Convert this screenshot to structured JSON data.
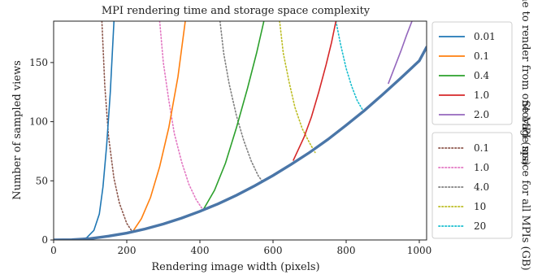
{
  "chart_data": {
    "type": "line",
    "title": "MPI rendering time and storage space complexity",
    "xlabel": "Rendering image width (pixels)",
    "ylabel": "Number of sampled views",
    "xlim": [
      0,
      1020
    ],
    "ylim": [
      0,
      185
    ],
    "x_ticks": [
      0,
      200,
      400,
      600,
      800,
      1000
    ],
    "y_ticks": [
      0,
      50,
      100,
      150
    ],
    "grid": false,
    "baseline": {
      "color": "#4a76a8",
      "points": [
        [
          0,
          0
        ],
        [
          50,
          0.2
        ],
        [
          100,
          1.2
        ],
        [
          150,
          3.2
        ],
        [
          200,
          5.8
        ],
        [
          250,
          9.3
        ],
        [
          300,
          13.5
        ],
        [
          350,
          18.5
        ],
        [
          400,
          24.2
        ],
        [
          450,
          30.6
        ],
        [
          500,
          37.8
        ],
        [
          550,
          45.8
        ],
        [
          600,
          54.5
        ],
        [
          650,
          64
        ],
        [
          700,
          74
        ],
        [
          750,
          85
        ],
        [
          800,
          97
        ],
        [
          850,
          109.5
        ],
        [
          900,
          123
        ],
        [
          950,
          137
        ],
        [
          1000,
          151.5
        ],
        [
          1020,
          163
        ]
      ]
    },
    "time_series": {
      "legend_title": "Time to render from one MPI (ms)",
      "legend_position": "right-top",
      "series": [
        {
          "name": "0.01",
          "color": "#1f77b4",
          "points": [
            [
              0,
              0
            ],
            [
              40,
              0.05
            ],
            [
              70,
              0.4
            ],
            [
              90,
              1.8
            ],
            [
              110,
              8
            ],
            [
              125,
              22
            ],
            [
              135,
              45
            ],
            [
              145,
              80
            ],
            [
              155,
              125
            ],
            [
              165,
              185
            ]
          ]
        },
        {
          "name": "0.1",
          "color": "#ff7f0e",
          "points": [
            [
              215,
              6.5
            ],
            [
              240,
              18
            ],
            [
              265,
              36
            ],
            [
              290,
              62
            ],
            [
              315,
              95
            ],
            [
              340,
              138
            ],
            [
              360,
              185
            ]
          ]
        },
        {
          "name": "0.4",
          "color": "#2ca02c",
          "points": [
            [
              410,
              26
            ],
            [
              440,
              42
            ],
            [
              470,
              65
            ],
            [
              500,
              95
            ],
            [
              530,
              128
            ],
            [
              555,
              158
            ],
            [
              575,
              185
            ]
          ]
        },
        {
          "name": "1.0",
          "color": "#d62728",
          "points": [
            [
              655,
              67
            ],
            [
              685,
              87
            ],
            [
              705,
              104
            ],
            [
              725,
              125
            ],
            [
              745,
              148
            ],
            [
              760,
              167
            ],
            [
              772,
              185
            ]
          ]
        },
        {
          "name": "2.0",
          "color": "#9467bd",
          "points": [
            [
              915,
              132
            ],
            [
              935,
              148
            ],
            [
              950,
              160
            ],
            [
              965,
              173
            ],
            [
              980,
              185
            ]
          ]
        }
      ]
    },
    "storage_series": {
      "legend_title": "Storage space for all MPIs (GB)",
      "legend_position": "right-bottom",
      "series": [
        {
          "name": "0.1",
          "color": "#8c564b",
          "points": [
            [
              132,
              185
            ],
            [
              140,
              130
            ],
            [
              150,
              88
            ],
            [
              165,
              52
            ],
            [
              180,
              31
            ],
            [
              200,
              14
            ],
            [
              215,
              7
            ]
          ]
        },
        {
          "name": "1.0",
          "color": "#e377c2",
          "points": [
            [
              290,
              185
            ],
            [
              300,
              150
            ],
            [
              315,
              118
            ],
            [
              330,
              90
            ],
            [
              350,
              66
            ],
            [
              370,
              47
            ],
            [
              390,
              34
            ],
            [
              405,
              27
            ]
          ]
        },
        {
          "name": "4.0",
          "color": "#7f7f7f",
          "points": [
            [
              455,
              185
            ],
            [
              465,
              158
            ],
            [
              480,
              132
            ],
            [
              500,
              105
            ],
            [
              520,
              84
            ],
            [
              540,
              67
            ],
            [
              560,
              54
            ],
            [
              570,
              50
            ]
          ]
        },
        {
          "name": "10",
          "color": "#bcbd22",
          "points": [
            [
              618,
              185
            ],
            [
              628,
              158
            ],
            [
              645,
              132
            ],
            [
              660,
              112
            ],
            [
              680,
              94
            ],
            [
              700,
              82
            ],
            [
              715,
              74
            ]
          ]
        },
        {
          "name": "20",
          "color": "#17becf",
          "points": [
            [
              772,
              185
            ],
            [
              785,
              165
            ],
            [
              800,
              145
            ],
            [
              815,
              130
            ],
            [
              830,
              118
            ],
            [
              845,
              110
            ]
          ]
        }
      ]
    }
  }
}
